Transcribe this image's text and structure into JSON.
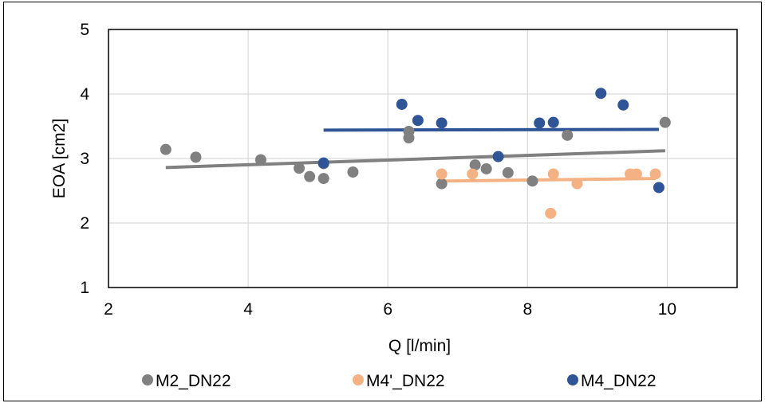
{
  "chart_data": {
    "type": "scatter",
    "title": "",
    "xlabel": "Q [l/min]",
    "ylabel": "EOA [cm2]",
    "xlim": [
      2,
      11
    ],
    "ylim": [
      1,
      5
    ],
    "x_ticks": [
      "2",
      "4",
      "6",
      "8",
      "10"
    ],
    "y_ticks": [
      "1",
      "2",
      "3",
      "4",
      "5"
    ],
    "grid": true,
    "legend_position": "bottom",
    "series": [
      {
        "name": "M2_DN22",
        "color": "#808080",
        "x": [
          2.82,
          3.25,
          4.18,
          4.73,
          4.88,
          5.08,
          5.08,
          5.5,
          6.3,
          6.3,
          6.77,
          7.25,
          7.41,
          7.72,
          8.07,
          8.57,
          9.97
        ],
        "y": [
          3.14,
          3.02,
          2.98,
          2.85,
          2.72,
          2.69,
          2.92,
          2.79,
          3.42,
          3.32,
          2.61,
          2.9,
          2.84,
          2.78,
          2.65,
          3.36,
          3.56
        ],
        "trendline": {
          "x": [
            2.82,
            9.97
          ],
          "y": [
            2.86,
            3.12
          ]
        }
      },
      {
        "name": "M4'_DN22",
        "color": "#F4B183",
        "x": [
          6.77,
          7.21,
          8.33,
          8.37,
          8.71,
          9.47,
          9.56,
          9.83
        ],
        "y": [
          2.76,
          2.76,
          2.15,
          2.76,
          2.61,
          2.76,
          2.76,
          2.76
        ],
        "trendline": {
          "x": [
            6.77,
            9.83
          ],
          "y": [
            2.65,
            2.69
          ]
        }
      },
      {
        "name": "M4_DN22",
        "color": "#2F5597",
        "x": [
          5.08,
          6.2,
          6.43,
          6.77,
          7.58,
          8.17,
          8.37,
          9.05,
          9.37,
          9.88
        ],
        "y": [
          2.93,
          3.84,
          3.59,
          3.55,
          3.03,
          3.55,
          3.56,
          4.01,
          3.83,
          2.55
        ],
        "trendline": {
          "x": [
            5.08,
            9.88
          ],
          "y": [
            3.44,
            3.45
          ]
        }
      }
    ]
  }
}
